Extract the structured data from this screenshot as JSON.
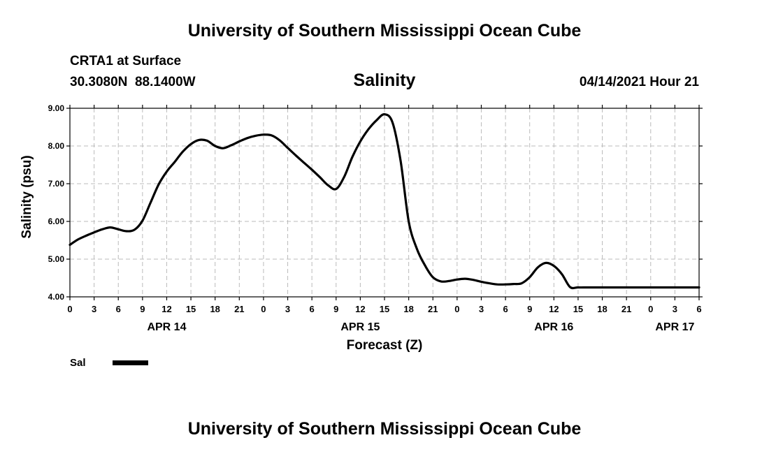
{
  "header": {
    "title": "University of Southern Mississippi Ocean Cube",
    "station": "CRTA1 at Surface",
    "coords": "30.3080N  88.1400W",
    "run": "04/14/2021 Hour 21"
  },
  "footer": {
    "title": "University of Southern Mississippi Ocean Cube"
  },
  "chart_data": {
    "type": "line",
    "title": "Salinity",
    "xlabel": "Forecast (Z)",
    "ylabel": "Salinity (psu)",
    "ylim": [
      4.0,
      9.0
    ],
    "yticks": [
      4.0,
      5.0,
      6.0,
      7.0,
      8.0,
      9.0
    ],
    "ytick_labels": [
      "4.00",
      "5.00",
      "6.00",
      "7.00",
      "8.00",
      "9.00"
    ],
    "xlim_hours": [
      0,
      78
    ],
    "xtick_hours": [
      0,
      3,
      6,
      9,
      12,
      15,
      18,
      21,
      24,
      27,
      30,
      33,
      36,
      39,
      42,
      45,
      48,
      51,
      54,
      57,
      60,
      63,
      66,
      69,
      72,
      75,
      78
    ],
    "xtick_labels": [
      "0",
      "3",
      "6",
      "9",
      "12",
      "15",
      "18",
      "21",
      "0",
      "3",
      "6",
      "9",
      "12",
      "15",
      "18",
      "21",
      "0",
      "3",
      "6",
      "9",
      "12",
      "15",
      "18",
      "21",
      "0",
      "3",
      "6"
    ],
    "date_labels": [
      {
        "label": "APR 14",
        "hour": 12
      },
      {
        "label": "APR 15",
        "hour": 36
      },
      {
        "label": "APR 16",
        "hour": 60
      },
      {
        "label": "APR 17",
        "hour": 75
      }
    ],
    "grid": true,
    "legend": {
      "position": "bottom-left",
      "entries": [
        "Sal"
      ]
    },
    "series": [
      {
        "name": "Sal",
        "x": [
          0,
          1,
          2,
          3,
          4,
          5,
          6,
          7,
          8,
          9,
          10,
          11,
          12,
          13,
          14,
          15,
          16,
          17,
          18,
          19,
          20,
          21,
          22,
          23,
          24,
          25,
          26,
          27,
          28,
          29,
          30,
          31,
          32,
          33,
          34,
          35,
          36,
          37,
          38,
          39,
          40,
          41,
          42,
          43,
          44,
          45,
          46,
          47,
          48,
          49,
          50,
          51,
          52,
          53,
          54,
          55,
          56,
          57,
          58,
          59,
          60,
          61,
          62,
          63,
          64,
          65,
          66,
          67,
          68,
          69,
          70,
          71,
          72,
          73,
          74,
          75,
          76,
          77,
          78
        ],
        "values": [
          5.38,
          5.52,
          5.62,
          5.71,
          5.79,
          5.84,
          5.79,
          5.74,
          5.78,
          6.02,
          6.5,
          6.98,
          7.32,
          7.58,
          7.85,
          8.05,
          8.16,
          8.14,
          8.0,
          7.94,
          8.02,
          8.12,
          8.21,
          8.27,
          8.3,
          8.28,
          8.15,
          7.95,
          7.75,
          7.56,
          7.37,
          7.17,
          6.96,
          6.86,
          7.18,
          7.7,
          8.12,
          8.44,
          8.68,
          8.84,
          8.62,
          7.6,
          6.0,
          5.28,
          4.84,
          4.52,
          4.41,
          4.42,
          4.46,
          4.48,
          4.45,
          4.4,
          4.36,
          4.33,
          4.33,
          4.34,
          4.36,
          4.52,
          4.78,
          4.9,
          4.82,
          4.6,
          4.26,
          4.25,
          4.25,
          4.25,
          4.25,
          4.25,
          4.25,
          4.25,
          4.25,
          4.25,
          4.25,
          4.25,
          4.25,
          4.25,
          4.25,
          4.25,
          4.25
        ]
      }
    ]
  },
  "colors": {
    "line": "#000000",
    "grid": "#bbbbbb",
    "background": "#ffffff"
  }
}
